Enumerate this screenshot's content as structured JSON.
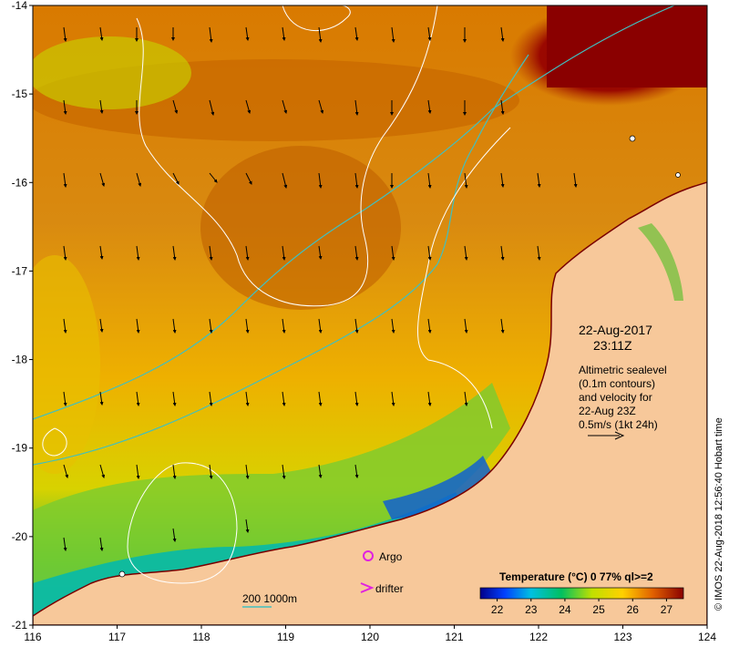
{
  "map": {
    "x_ticks": [
      "116",
      "117",
      "118",
      "119",
      "120",
      "121",
      "122",
      "123",
      "124"
    ],
    "y_ticks": [
      "-14",
      "-15",
      "-16",
      "-17",
      "-18",
      "-19",
      "-20",
      "-21"
    ],
    "lon_range": [
      116,
      124
    ],
    "lat_range": [
      -21,
      -14
    ]
  },
  "annotation": {
    "date": "22-Aug-2017",
    "time": "23:11Z",
    "desc_line1": "Altimetric sealevel",
    "desc_line2": "(0.1m contours)",
    "desc_line3": "and velocity for",
    "desc_line4": "22-Aug 23Z",
    "desc_line5": "0.5m/s (1kt 24h)"
  },
  "legend": {
    "argo": "Argo",
    "drifter": "drifter",
    "argo_color": "#e020e0",
    "drifter_color": "#e020e0"
  },
  "isobath": {
    "label": "200  1000m",
    "color": "#40c0c0"
  },
  "colorbar": {
    "title": "Temperature (°C) 0 77% ql>=2",
    "ticks": [
      "22",
      "23",
      "24",
      "25",
      "26",
      "27"
    ],
    "range": [
      21.5,
      27.5
    ]
  },
  "credit": "© IMOS 22-Aug-2018 12:56:40 Hobart time",
  "colors": {
    "land": "#f7c89a",
    "coast_line": "#7a0000"
  }
}
